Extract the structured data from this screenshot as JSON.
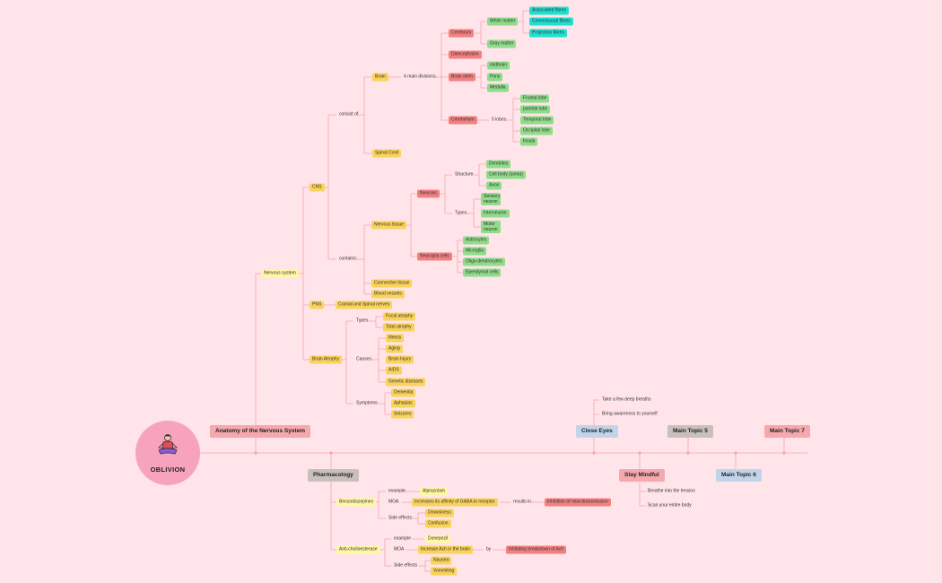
{
  "colors": {
    "line": "#f5a4b1",
    "background": "#ffe4e9",
    "yellow": "#fde94a",
    "orange": "#f9d35a",
    "red": "#f28080",
    "green": "#8fdc8a",
    "cyan": "#22e0d0"
  },
  "logo": {
    "title": "OBLIVION",
    "icon": "meditation-icon"
  },
  "topics": {
    "anatomy": "Anatomy of the Nervous System",
    "close_eyes": "Close Eyes",
    "main5": "Main Topic 5",
    "main7": "Main Topic 7",
    "pharmacology": "Pharmacology",
    "stay_mindful": "Stay Mindful",
    "main6": "Main Topic 6"
  },
  "close_eyes_items": [
    "Take a few deep breaths",
    "Bring awareness to yourself"
  ],
  "mindful_items": [
    "Breathe into the tension",
    "Scan your entire body"
  ],
  "anatomy": {
    "nervous_system": "Nervous system",
    "cns": "CNS",
    "consist_of": "consist of",
    "brain": "Brain",
    "four_main": "4 main divisions",
    "cerebrum": "Cerebrum",
    "white_matter": "White matter",
    "assoc": "Associated fibres",
    "commis": "Commissural fibres",
    "proj": "Projection fibres",
    "gray": "Gray matter",
    "dien": "Diencephalon",
    "brainstem": "Brain stem",
    "midbrain": "midbrain",
    "pons": "Pons",
    "medulla": "Medulla",
    "cerebellum": "Cerebellum",
    "five_lobes": "5 lobes",
    "frontal": "Frontal lobe",
    "parietal": "parietal lobe",
    "temporal": "Temporal lobe",
    "occipital": "Occipital lobe",
    "insula": "Insula",
    "spinal": "Spinal Cord",
    "contains": "contains:",
    "nervous_tissue": "Nervous tissue",
    "neurons": "Neurons",
    "structure": "Structure",
    "dendrites": "Dendrites",
    "cellbody": "Cell body (soma)",
    "axon": "Axon",
    "types": "Types",
    "sensory": "Sensory neuron",
    "inter": "Interneuron",
    "motor": "Motor neuron",
    "neuroglia": "Neuroglia cells",
    "astro": "Astrocytes",
    "micro": "Microglia",
    "oligo": "Oligo-dendrocytes",
    "epend": "Ependymal cells",
    "connective": "Connective tissue",
    "blood": "Blood vessels",
    "pns": "PNS",
    "cranial": "Cranial and Spinal nerves",
    "atrophy": "Brain Atrophy",
    "types2": "Types",
    "focal": "Focal atrophy",
    "total": "Total atrophy",
    "causes": "Causes",
    "illness": "Illness",
    "aging": "Aging",
    "injury": "Brain Injury",
    "aids": "AIDS",
    "genetic": "Genetic diseases",
    "symptoms": "Symptoms",
    "dementia": "Dementia",
    "aphasias": "Aphasias",
    "seizures": "Seizures"
  },
  "pharm": {
    "benzo": "Benzodiazepines",
    "example": "example",
    "alprazolam": "Alprazolam",
    "moa": "MOA",
    "increases": "Increases its affinity  of GABA to receptor",
    "results": "results in",
    "inhibition": "Inhibition of neurotransmission",
    "side": "Side effects",
    "drowsiness": "Drowsiness",
    "confusion": "Confusion",
    "antichol": "Anti-cholinesterase",
    "example2": "example",
    "donepezil": "Donepezil",
    "moa2": "MOA",
    "increase_ach": "Increase Ach in the brain",
    "by": "by",
    "inhibiting": "Inhibiting breakdown of Ach",
    "side2": "Side effects",
    "nausea": "Nausea",
    "vomiting": "Vommiting"
  }
}
